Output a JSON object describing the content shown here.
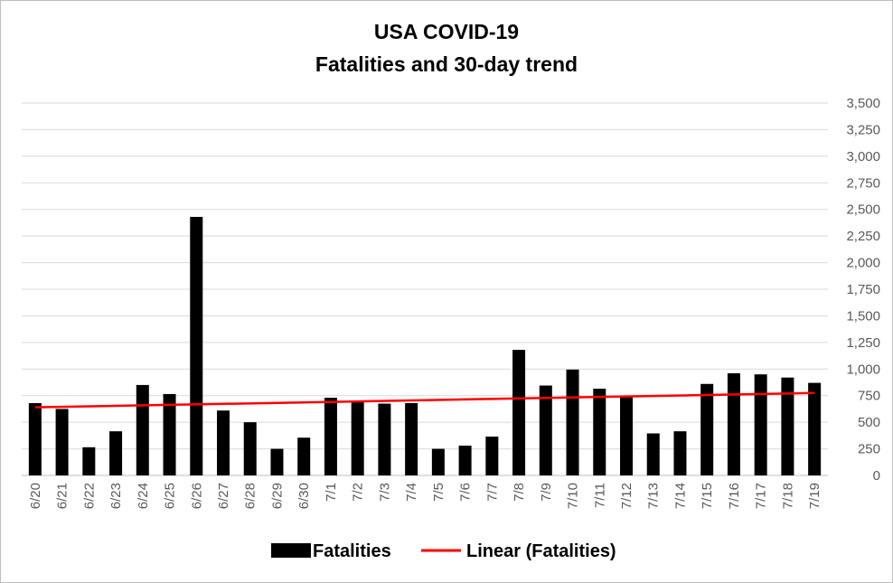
{
  "chart_data": {
    "type": "bar",
    "title": "USA COVID-19",
    "subtitle": "Fatalities and 30-day trend",
    "categories": [
      "6/20",
      "6/21",
      "6/22",
      "6/23",
      "6/24",
      "6/25",
      "6/26",
      "6/27",
      "6/28",
      "6/29",
      "6/30",
      "7/1",
      "7/2",
      "7/3",
      "7/4",
      "7/5",
      "7/6",
      "7/7",
      "7/8",
      "7/9",
      "7/10",
      "7/11",
      "7/12",
      "7/13",
      "7/14",
      "7/15",
      "7/16",
      "7/17",
      "7/18",
      "7/19"
    ],
    "series": [
      {
        "name": "Fatalities",
        "type": "bar",
        "color": "#000000",
        "values": [
          680,
          625,
          265,
          415,
          850,
          765,
          2430,
          610,
          500,
          250,
          355,
          730,
          690,
          675,
          680,
          250,
          280,
          365,
          1180,
          845,
          995,
          815,
          735,
          395,
          415,
          860,
          960,
          950,
          920,
          870
        ]
      },
      {
        "name": "Linear (Fatalities)",
        "type": "trendline",
        "color": "#ff0000",
        "start": [
          1,
          640
        ],
        "end": [
          30,
          775
        ]
      }
    ],
    "y_axis": {
      "position": "right",
      "min": 0,
      "max": 3500,
      "step": 250,
      "tick_labels": [
        "0",
        "250",
        "500",
        "750",
        "1,000",
        "1,250",
        "1,500",
        "1,750",
        "2,000",
        "2,250",
        "2,500",
        "2,750",
        "3,000",
        "3,250",
        "3,500"
      ]
    },
    "x_axis": {
      "label_rotation": -90
    },
    "grid": true,
    "legend": {
      "position": "bottom"
    },
    "colors": {
      "gridline": "#d9d9d9",
      "axis": "#bfbfbf",
      "tick_text": "#595959"
    }
  }
}
